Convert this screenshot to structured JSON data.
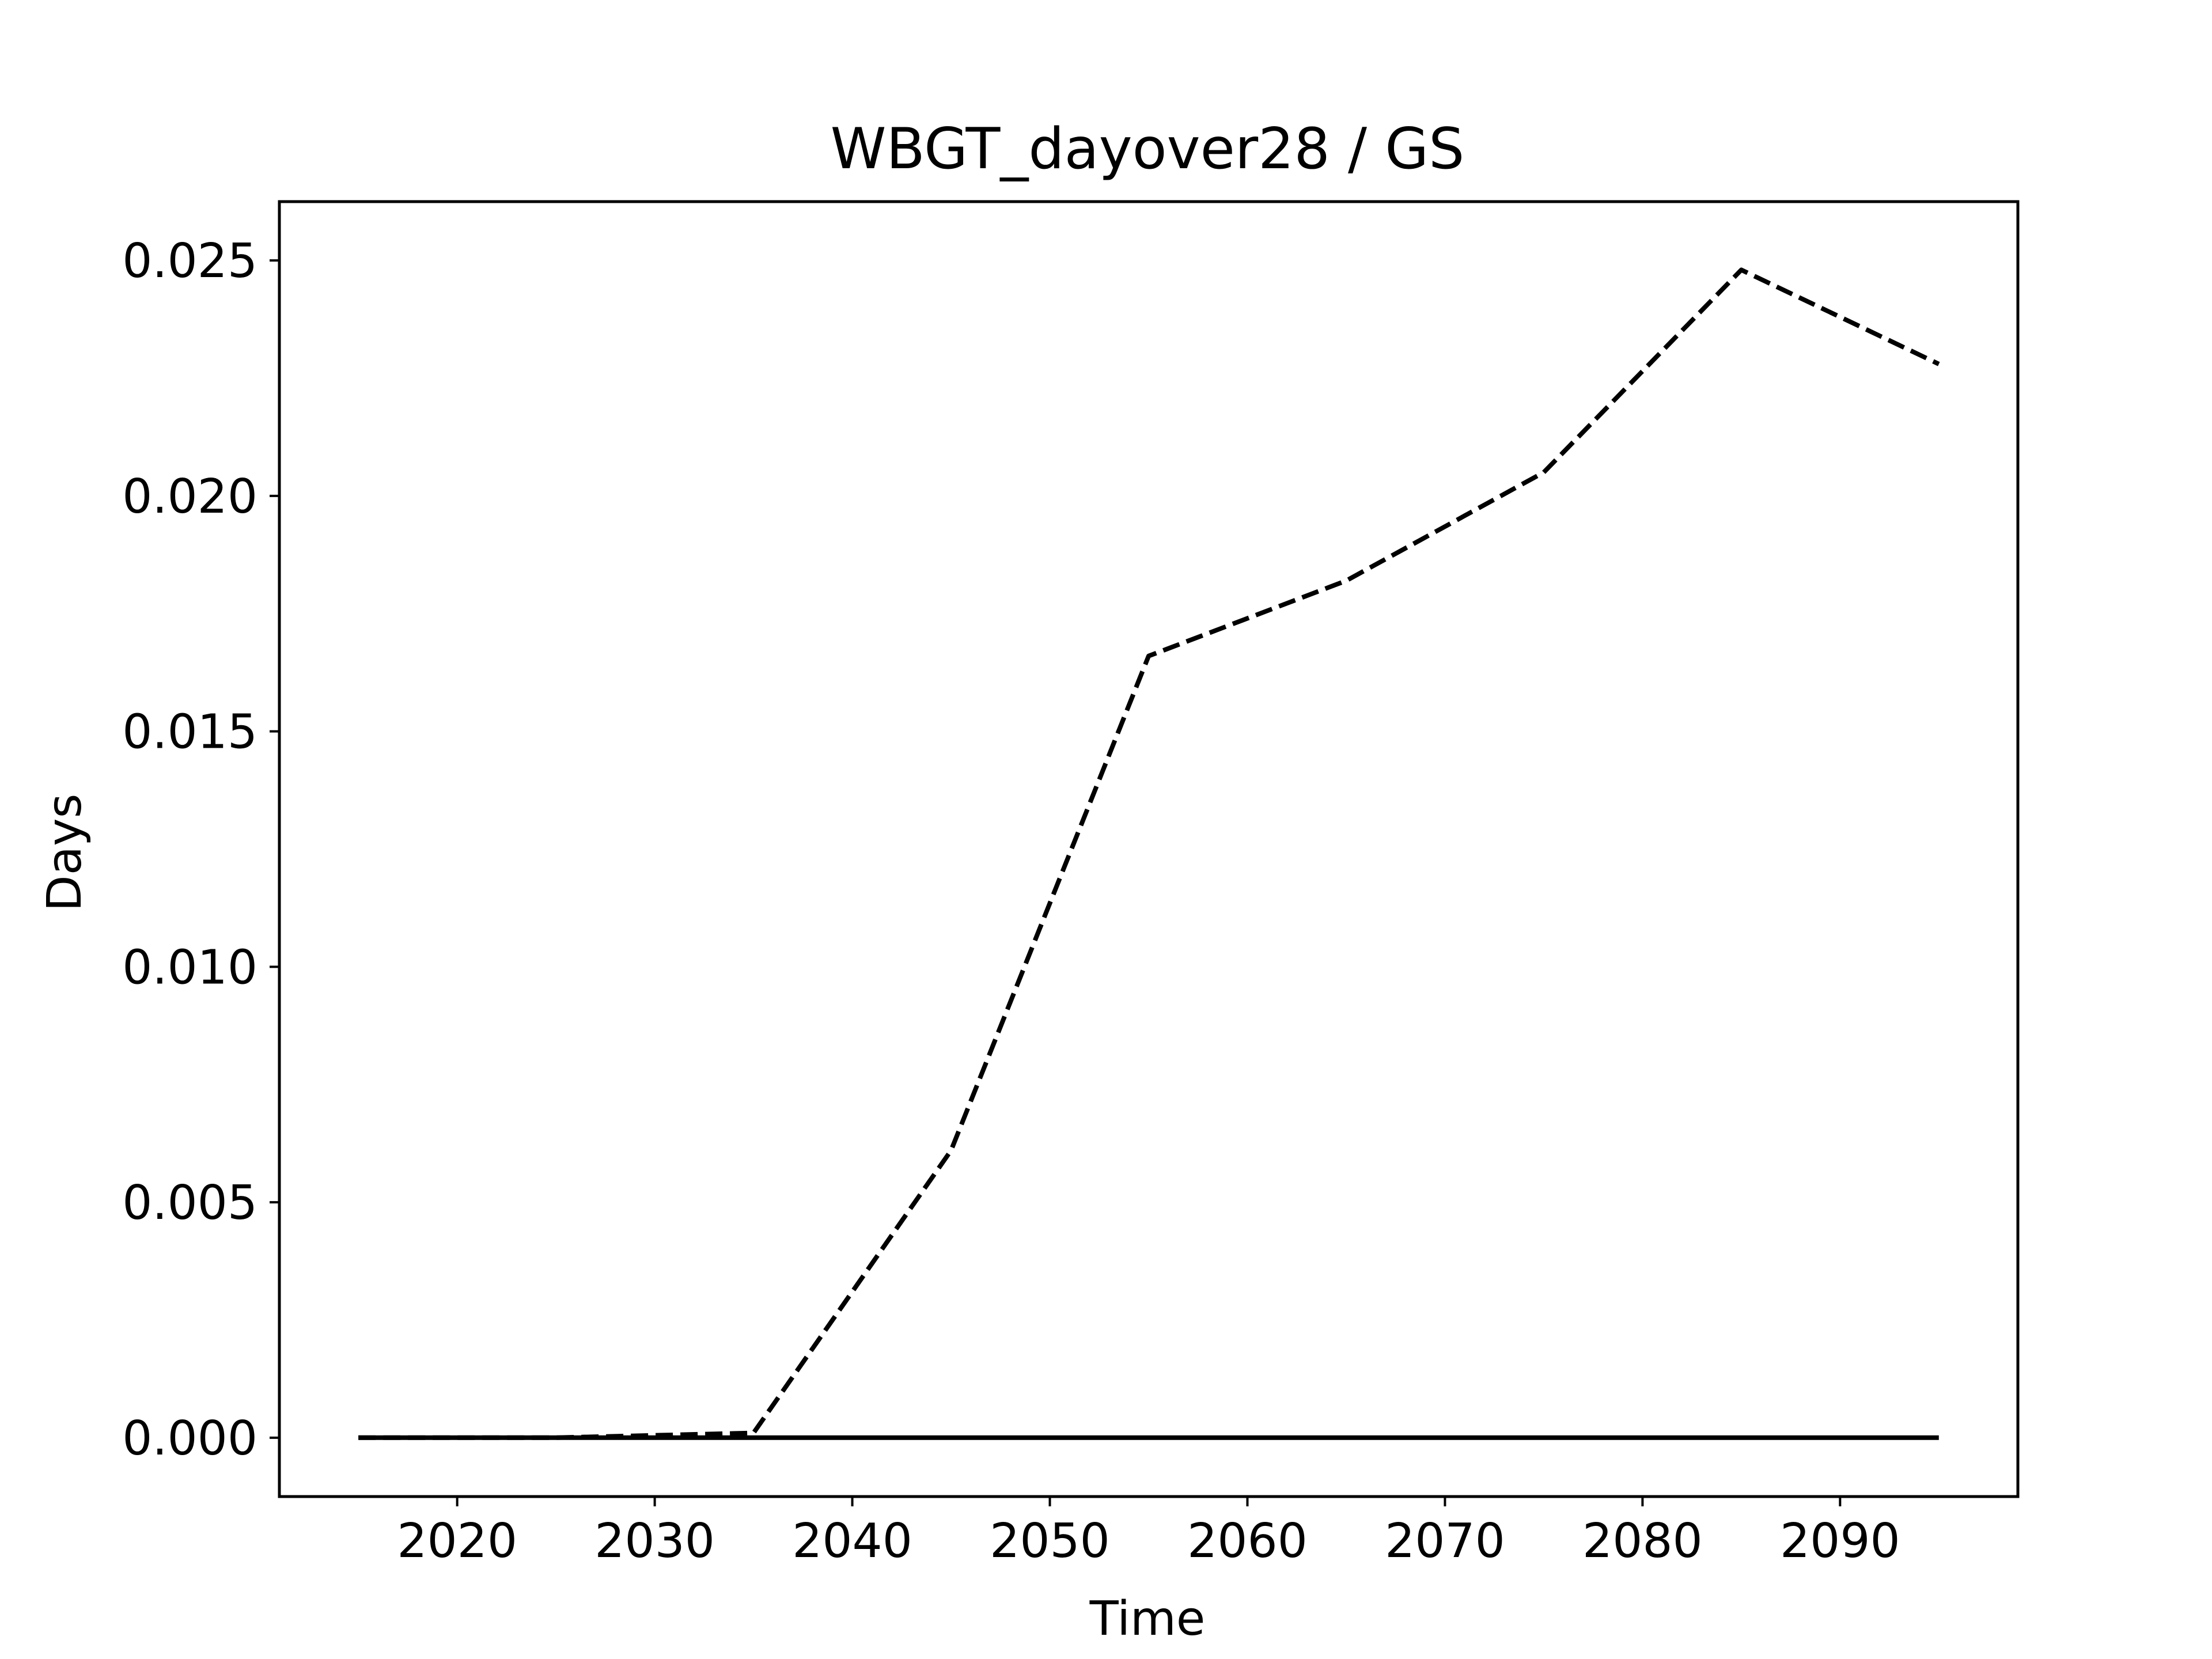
{
  "chart_data": {
    "type": "line",
    "title": "WBGT_dayover28 / GS",
    "xlabel": "Time",
    "ylabel": "Days",
    "xlim": [
      2011,
      2099
    ],
    "ylim": [
      -0.00125,
      0.02625
    ],
    "xticks": [
      2020,
      2030,
      2040,
      2050,
      2060,
      2070,
      2080,
      2090
    ],
    "xtick_labels": [
      "2020",
      "2030",
      "2040",
      "2050",
      "2060",
      "2070",
      "2080",
      "2090"
    ],
    "yticks": [
      0,
      0.005,
      0.01,
      0.015,
      0.02,
      0.025
    ],
    "ytick_labels": [
      "0.000",
      "0.005",
      "0.010",
      "0.015",
      "0.020",
      "0.025"
    ],
    "grid": false,
    "legend": "none",
    "x": [
      2015,
      2025,
      2035,
      2045,
      2055,
      2065,
      2075,
      2085,
      2095
    ],
    "series": [
      {
        "style": "dashed",
        "color": "#000000",
        "values": [
          0.0,
          0.0,
          0.0001,
          0.0061,
          0.0166,
          0.0182,
          0.0205,
          0.0248,
          0.0228
        ]
      },
      {
        "style": "solid",
        "color": "#000000",
        "values": [
          0.0,
          0.0,
          0.0,
          0.0,
          0.0,
          0.0,
          0.0,
          0.0,
          0.0
        ]
      }
    ]
  }
}
